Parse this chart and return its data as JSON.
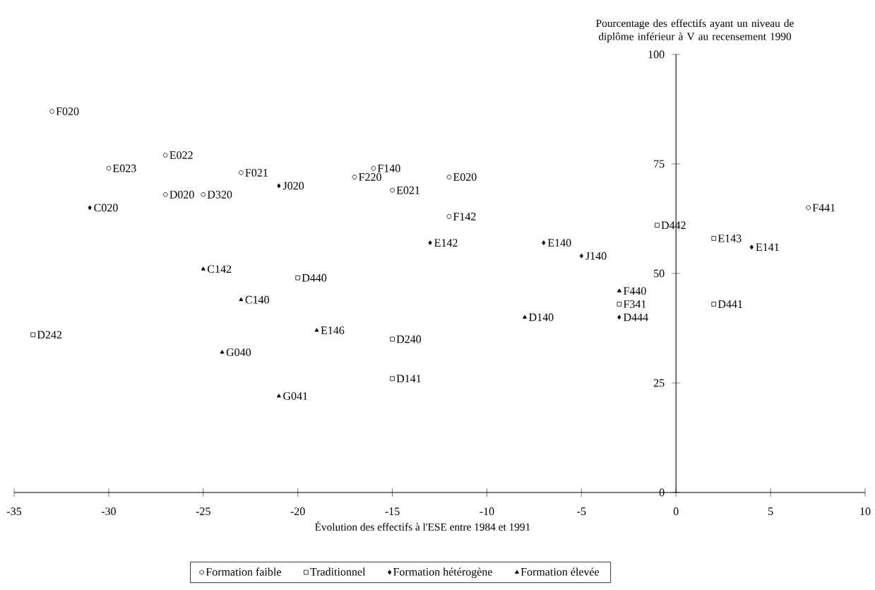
{
  "chart_data": {
    "type": "scatter",
    "xlabel": "Évolution des effectifs à l'ESE entre 1984 et 1991",
    "ylabel": "Pourcentage des effectifs ayant un niveau de diplôme inférieur à V au recensement 1990",
    "xlim": [
      -35,
      10
    ],
    "ylim": [
      0,
      100
    ],
    "xticks": [
      -35,
      -30,
      -25,
      -20,
      -15,
      -10,
      -5,
      0,
      5,
      10
    ],
    "yticks": [
      0,
      25,
      50,
      75,
      100
    ],
    "grid": false,
    "legend": "bottom",
    "series": [
      {
        "name": "Formation faible",
        "color": "#000000",
        "marker": "circle",
        "x": [
          -33,
          -30,
          -27,
          -23,
          -27,
          -25,
          -16,
          -17,
          -15,
          -12,
          -12,
          7
        ],
        "values": [
          87,
          74,
          77,
          73,
          68,
          68,
          74,
          72,
          69,
          72,
          63,
          65
        ]
      },
      {
        "name": "Traditionnel",
        "color": "#000000",
        "marker": "square",
        "x": [
          -1,
          2,
          2,
          -20,
          -3,
          -34,
          -15,
          -15
        ],
        "values": [
          61,
          58,
          43,
          49,
          43,
          36,
          35,
          26
        ]
      },
      {
        "name": "Formation hétérogène",
        "color": "#000000",
        "marker": "diamond",
        "x": [
          -31,
          -21,
          -13,
          -7,
          -5,
          4,
          -3
        ],
        "values": [
          65,
          70,
          57,
          57,
          54,
          56,
          40
        ]
      },
      {
        "name": "Formation élevée",
        "color": "#000000",
        "marker": "triangle",
        "x": [
          -25,
          -23,
          -19,
          -24,
          -21,
          -8,
          -3
        ],
        "values": [
          51,
          44,
          37,
          32,
          22,
          40,
          46
        ]
      }
    ],
    "annotations": [
      {
        "text": "F020",
        "x": -33,
        "y": 87
      },
      {
        "text": "E023",
        "x": -30,
        "y": 74
      },
      {
        "text": "E022",
        "x": -27,
        "y": 77
      },
      {
        "text": "F021",
        "x": -23,
        "y": 73
      },
      {
        "text": "D020",
        "x": -27,
        "y": 68
      },
      {
        "text": "D320",
        "x": -25,
        "y": 68
      },
      {
        "text": "F140",
        "x": -16,
        "y": 74
      },
      {
        "text": "F220",
        "x": -17,
        "y": 72
      },
      {
        "text": "E021",
        "x": -15,
        "y": 69
      },
      {
        "text": "E020",
        "x": -12,
        "y": 72
      },
      {
        "text": "F142",
        "x": -12,
        "y": 63
      },
      {
        "text": "F441",
        "x": 7,
        "y": 65
      },
      {
        "text": "D442",
        "x": -1,
        "y": 61
      },
      {
        "text": "E143",
        "x": 2,
        "y": 58
      },
      {
        "text": "D441",
        "x": 2,
        "y": 43
      },
      {
        "text": "D440",
        "x": -20,
        "y": 49
      },
      {
        "text": "F341",
        "x": -3,
        "y": 43
      },
      {
        "text": "D242",
        "x": -34,
        "y": 36
      },
      {
        "text": "D240",
        "x": -15,
        "y": 35
      },
      {
        "text": "D141",
        "x": -15,
        "y": 26
      },
      {
        "text": "C020",
        "x": -31,
        "y": 65
      },
      {
        "text": "J020",
        "x": -21,
        "y": 70
      },
      {
        "text": "E142",
        "x": -13,
        "y": 57
      },
      {
        "text": "E140",
        "x": -7,
        "y": 57
      },
      {
        "text": "J140",
        "x": -5,
        "y": 54
      },
      {
        "text": "E141",
        "x": 4,
        "y": 56
      },
      {
        "text": "D444",
        "x": -3,
        "y": 40
      },
      {
        "text": "C142",
        "x": -25,
        "y": 51
      },
      {
        "text": "C140",
        "x": -23,
        "y": 44
      },
      {
        "text": "E146",
        "x": -19,
        "y": 37
      },
      {
        "text": "G040",
        "x": -24,
        "y": 32
      },
      {
        "text": "G041",
        "x": -21,
        "y": 22
      },
      {
        "text": "D140",
        "x": -8,
        "y": 40
      },
      {
        "text": "F440",
        "x": -3,
        "y": 46
      }
    ]
  }
}
